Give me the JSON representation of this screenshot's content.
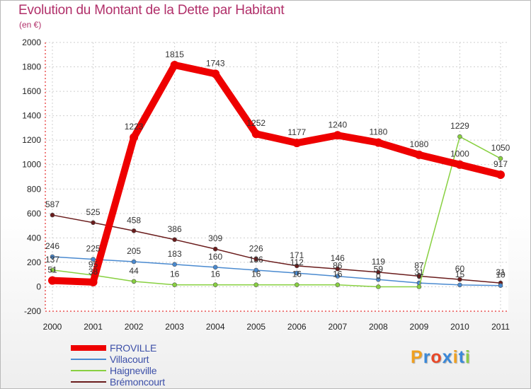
{
  "title": "Evolution du Montant de la Dette par Habitant",
  "unit": "(en €)",
  "logo": {
    "letters": [
      "P",
      "r",
      "o",
      "x",
      "i",
      "t",
      "i"
    ],
    "colors": [
      "#f0a020",
      "#3a88d8",
      "#e84828",
      "#3a88d8",
      "#f0a020",
      "#3a88d8",
      "#8ccc48"
    ]
  },
  "chart_data": {
    "type": "line",
    "x": [
      "2000",
      "2001",
      "2002",
      "2003",
      "2004",
      "2005",
      "2006",
      "2007",
      "2008",
      "2009",
      "2010",
      "2011"
    ],
    "ylim": [
      -200,
      2000
    ],
    "yticks": [
      "-200",
      "0",
      "200",
      "400",
      "600",
      "800",
      "1000",
      "1200",
      "1400",
      "1600",
      "1800",
      "2000"
    ],
    "legend_position": "bottom-left",
    "series": [
      {
        "name": "FROVILLE",
        "color": "#ee0000",
        "values": [
          51,
          38,
          1223,
          1815,
          1743,
          1252,
          1177,
          1240,
          1180,
          1080,
          1000,
          917
        ],
        "labels": [
          "51",
          "38",
          "1223",
          "1815",
          "1743",
          "1252",
          "1177",
          "1240",
          "1180",
          "1080",
          "1000",
          "917"
        ]
      },
      {
        "name": "Villacourt",
        "color": "#4a8ad0",
        "values": [
          246,
          225,
          205,
          183,
          160,
          136,
          112,
          86,
          59,
          31,
          15,
          10
        ],
        "labels": [
          "246",
          "225",
          "205",
          "183",
          "160",
          "136",
          "112",
          "86",
          "59",
          "31",
          "15",
          "10"
        ]
      },
      {
        "name": "Haigneville",
        "color": "#88d040",
        "values": [
          137,
          95,
          44,
          16,
          16,
          16,
          16,
          16,
          0,
          0,
          1229,
          1050
        ],
        "labels": [
          "137",
          "95",
          "44",
          "16",
          "16",
          "16",
          "16",
          "16",
          "0",
          "0",
          "1229",
          "1050"
        ]
      },
      {
        "name": "Brémoncourt",
        "color": "#6a1c1c",
        "values": [
          587,
          525,
          458,
          386,
          309,
          226,
          171,
          146,
          119,
          87,
          60,
          31
        ],
        "labels": [
          "587",
          "525",
          "458",
          "386",
          "309",
          "226",
          "171",
          "146",
          "119",
          "87",
          "60",
          "31"
        ]
      }
    ]
  }
}
